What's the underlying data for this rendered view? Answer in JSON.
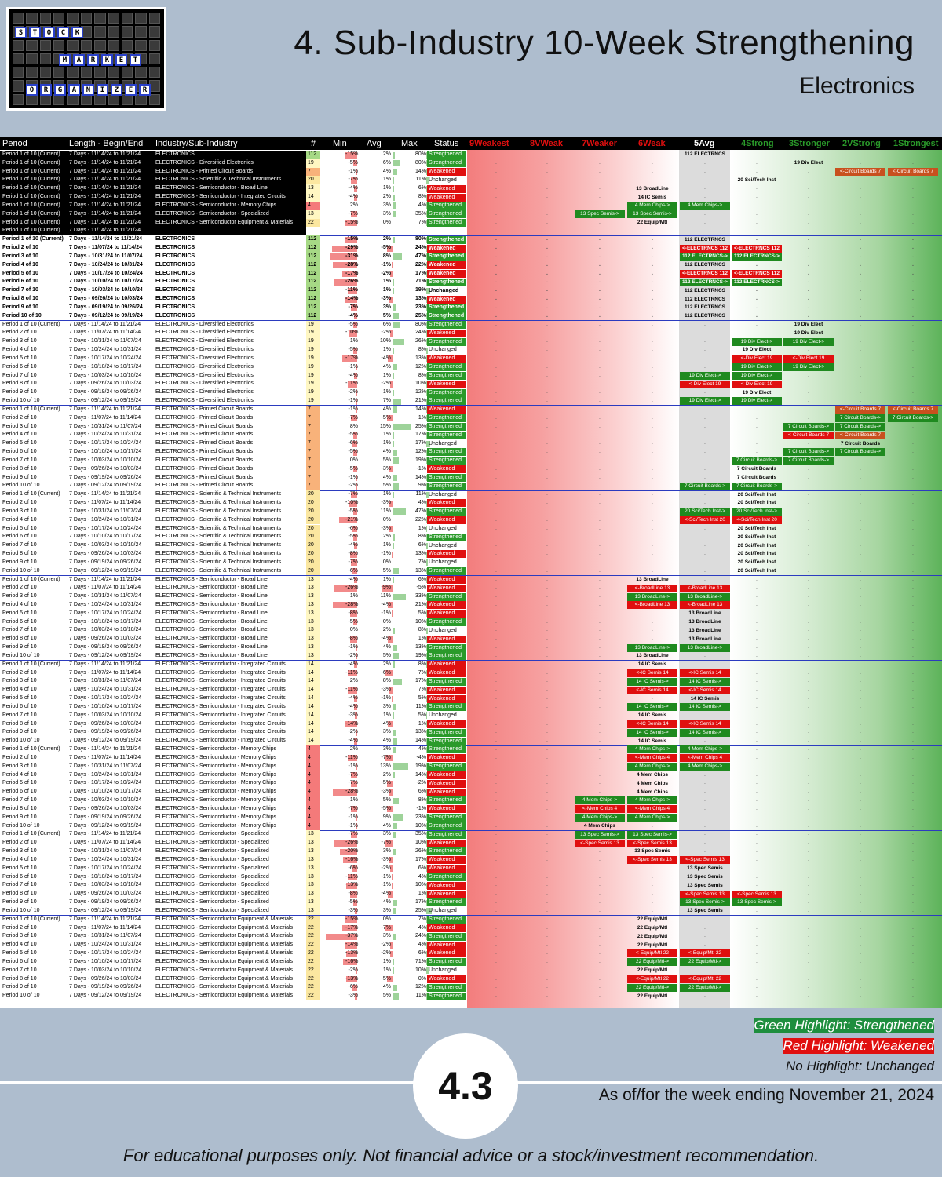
{
  "header": {
    "logo_words": [
      "STOCK",
      "MARKET",
      "ORGANIZER"
    ],
    "title": "4. Sub-Industry 10-Week Strengthening",
    "subtitle": "Electronics"
  },
  "table": {
    "columns": [
      "Period",
      "Length - Begin/End",
      "Industry/Sub-Industry",
      "#",
      "Min",
      "Avg",
      "Max",
      "Status",
      "9Weakest",
      "8VWeak",
      "7Weaker",
      "6Weak",
      "5Avg",
      "4Strong",
      "3Stronger",
      "2VStrong",
      "1Strongest"
    ],
    "column_colors": {
      "weak": "#e00f0f",
      "avg": "#ffffff",
      "strong": "#2a9a2a"
    },
    "rows": []
  },
  "legend": {
    "green": "Green Highlight: Strengthened",
    "red": "Red Highlight: Weakened",
    "none": "No Highlight: Unchanged"
  },
  "badge": "4.3",
  "as_of": "As of/for the week ending November 21, 2024",
  "disclaimer": "For educational purposes only. Not financial advice or a stock/investment recommendation."
}
